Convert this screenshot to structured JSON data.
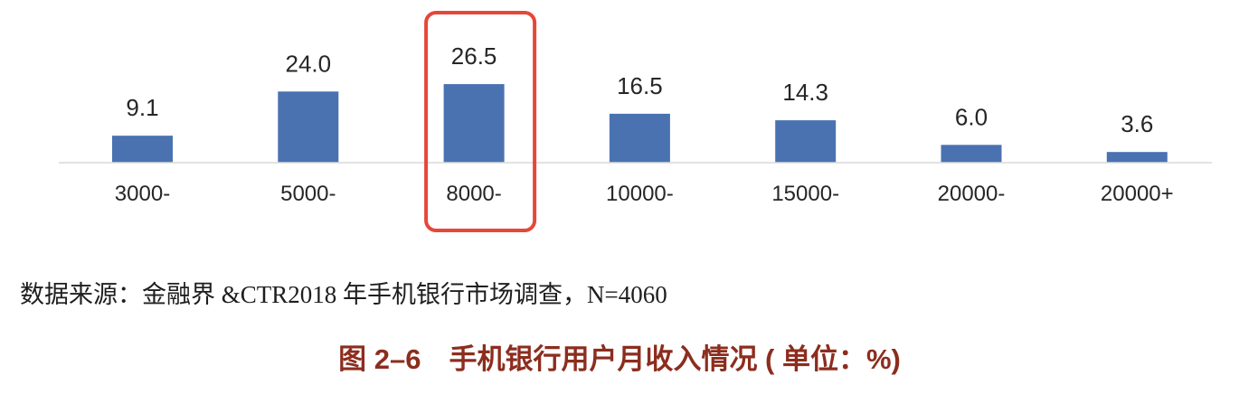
{
  "source": "数据来源：金融界 &CTR2018 年手机银行市场调查，N=4060",
  "colors": {
    "bar": "#4a72b1",
    "highlight_border": "#e5473a",
    "title": "#8c2d1e",
    "axis": "#d9d9d9"
  },
  "chart_data": {
    "type": "bar",
    "title": "图 2–6　手机银行用户月收入情况 ( 单位：%)",
    "xlabel": "",
    "ylabel": "",
    "categories": [
      "3000-",
      "5000-",
      "8000-",
      "10000-",
      "15000-",
      "20000-",
      "20000+"
    ],
    "values": [
      9.1,
      24.0,
      26.5,
      16.5,
      14.3,
      6.0,
      3.6
    ],
    "data_labels": [
      "9.1",
      "24.0",
      "26.5",
      "16.5",
      "14.3",
      "6.0",
      "3.6"
    ],
    "highlighted_index": 2,
    "grid": false,
    "legend": false,
    "y_axis": false
  }
}
